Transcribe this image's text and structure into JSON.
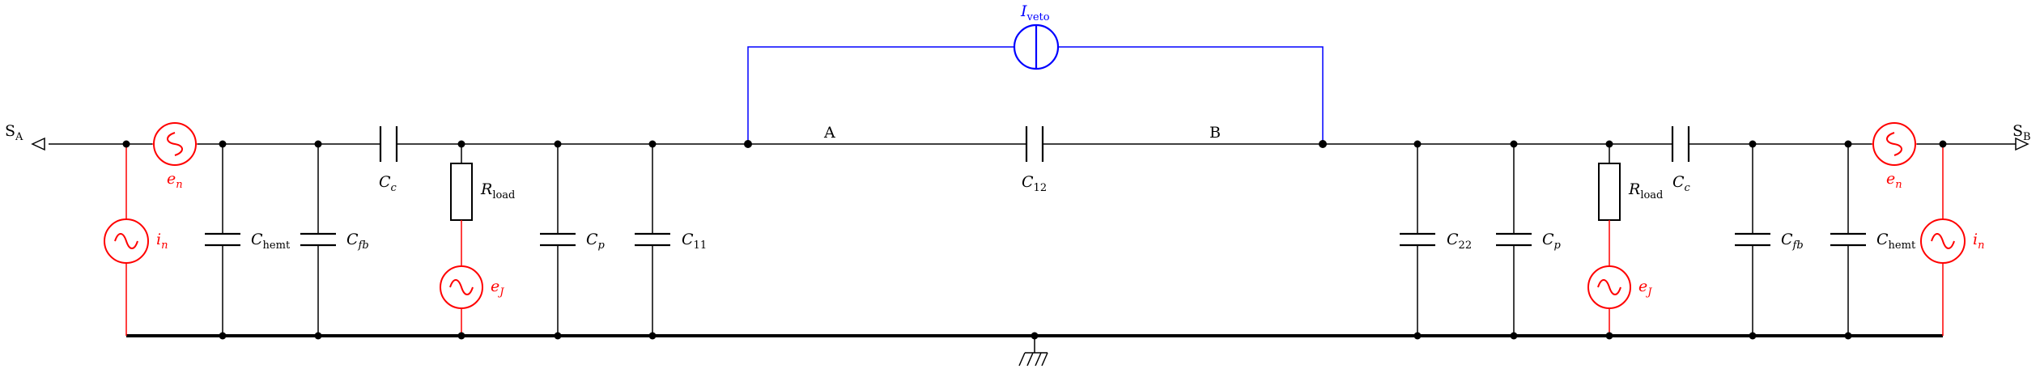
{
  "colors": {
    "wire": "#000000",
    "noise": "#ff0000",
    "veto": "#0000ff"
  },
  "ports": {
    "left": "S",
    "left_sub": "A",
    "right": "S",
    "right_sub": "B"
  },
  "nodes": {
    "a": "A",
    "b": "B"
  },
  "veto": {
    "symbol": "I",
    "sub": "veto"
  },
  "ground_icon": "ground-icon",
  "components": {
    "en_left": {
      "sym": "e",
      "sub": "n"
    },
    "en_right": {
      "sym": "e",
      "sub": "n"
    },
    "in_left": {
      "sym": "i",
      "sub": "n"
    },
    "in_right": {
      "sym": "i",
      "sub": "n"
    },
    "chemt_left": {
      "sym": "C",
      "sub": "hemt"
    },
    "chemt_right": {
      "sym": "C",
      "sub": "hemt"
    },
    "cfb_left": {
      "sym": "C",
      "sub": "fb"
    },
    "cfb_right": {
      "sym": "C",
      "sub": "fb"
    },
    "cc_left": {
      "sym": "C",
      "sub": "c"
    },
    "cc_right": {
      "sym": "C",
      "sub": "c"
    },
    "rload_left": {
      "sym": "R",
      "sub": "load"
    },
    "rload_right": {
      "sym": "R",
      "sub": "load"
    },
    "ej_left": {
      "sym": "e",
      "sub": "J"
    },
    "ej_right": {
      "sym": "e",
      "sub": "J"
    },
    "cp_left": {
      "sym": "C",
      "sub": "p"
    },
    "cp_right": {
      "sym": "C",
      "sub": "p"
    },
    "c11": {
      "sym": "C",
      "sub": "11"
    },
    "c22": {
      "sym": "C",
      "sub": "22"
    },
    "c12": {
      "sym": "C",
      "sub": "12"
    }
  }
}
